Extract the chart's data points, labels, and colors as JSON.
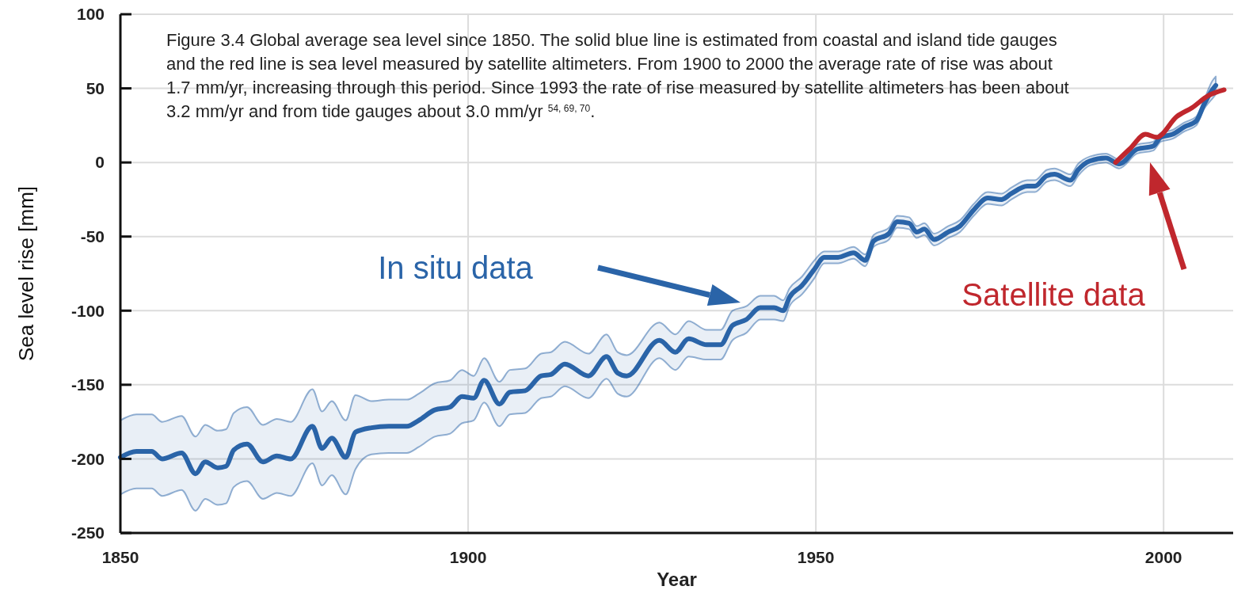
{
  "chart_data": {
    "type": "line",
    "xlabel": "Year",
    "ylabel": "Sea level rise [mm]",
    "xlim": [
      1850,
      2010
    ],
    "xticks": [
      1850,
      1900,
      1950,
      2000
    ],
    "ylim": [
      -250,
      100
    ],
    "yticks": [
      -250,
      -200,
      -150,
      -100,
      -50,
      0,
      50,
      100
    ],
    "grid": true,
    "line_style": "solid",
    "series": [
      {
        "color": "#2a64a8",
        "x": [
          1850,
          1852.3,
          1854.5,
          1856,
          1858.8,
          1860.8,
          1862.2,
          1864,
          1865.2,
          1866.3,
          1868.2,
          1870.5,
          1872.5,
          1874.5,
          1877.6,
          1879,
          1880.4,
          1882.4,
          1883.8,
          1886.1,
          1888.6,
          1891.2,
          1892.9,
          1895.2,
          1897.4,
          1899.1,
          1900.8,
          1902.3,
          1904.5,
          1906,
          1908.2,
          1910.5,
          1911.9,
          1913.9,
          1917.3,
          1919.9,
          1921.5,
          1922.8,
          1927.5,
          1929.8,
          1931.7,
          1934.3,
          1936.3,
          1938,
          1940,
          1942,
          1944,
          1945.3,
          1946.2,
          1948,
          1949.8,
          1951.2,
          1953.2,
          1955.4,
          1957.1,
          1958.3,
          1960.5,
          1961.7,
          1963.4,
          1964.5,
          1965.6,
          1967,
          1969,
          1970.7,
          1972.7,
          1974.7,
          1976.7,
          1978.1,
          1980.4,
          1981.5,
          1983.2,
          1984.3,
          1986.6,
          1987.7,
          1989.4,
          1991.7,
          1993.6,
          1996.2,
          1998.5,
          1999.6,
          2001.3,
          2003,
          2004.7,
          2005.8,
          2007,
          2007.5
        ],
        "values": [
          -199,
          -195,
          -195,
          -200,
          -196,
          -210,
          -202,
          -206,
          -205,
          -194,
          -190,
          -202,
          -198,
          -200,
          -178,
          -193,
          -186,
          -199,
          -182,
          -179,
          -178,
          -178,
          -174,
          -167,
          -165,
          -158,
          -159,
          -147,
          -163,
          -155,
          -154,
          -144,
          -143,
          -136,
          -144,
          -131,
          -142,
          -144,
          -120,
          -128,
          -119,
          -123,
          -123,
          -110,
          -106,
          -98,
          -98,
          -100,
          -91,
          -83,
          -72,
          -64,
          -64,
          -61,
          -66,
          -53,
          -48,
          -40,
          -41,
          -47,
          -45,
          -52,
          -47,
          -43,
          -32,
          -24,
          -25,
          -21,
          -16,
          -16,
          -9,
          -8,
          -12,
          -5,
          1,
          3,
          -1,
          9,
          11,
          17,
          19,
          24,
          28,
          39,
          49,
          52
        ],
        "upper": [
          -174,
          -170,
          -170,
          -175,
          -171,
          -185,
          -177,
          -181,
          -180,
          -169,
          -165,
          -177,
          -173,
          -175,
          -153,
          -168,
          -161,
          -174,
          -157,
          -161,
          -160,
          -160,
          -156,
          -149,
          -147,
          -140,
          -144,
          -132,
          -148,
          -140,
          -139,
          -129,
          -128,
          -121,
          -129,
          -116,
          -128,
          -130,
          -108,
          -116,
          -107,
          -113,
          -113,
          -100,
          -97,
          -90,
          -90,
          -93,
          -85,
          -77,
          -66,
          -60,
          -60,
          -57,
          -62,
          -49,
          -44,
          -36,
          -37,
          -43,
          -41,
          -48,
          -43,
          -39,
          -28,
          -20,
          -21,
          -17,
          -12,
          -12,
          -5,
          -4,
          -8,
          -1,
          4,
          6,
          2,
          12,
          14,
          20,
          22,
          27,
          31,
          42,
          55,
          58
        ],
        "lower": [
          -224,
          -220,
          -220,
          -225,
          -221,
          -235,
          -227,
          -231,
          -230,
          -219,
          -215,
          -227,
          -223,
          -225,
          -203,
          -218,
          -211,
          -224,
          -207,
          -197,
          -196,
          -196,
          -192,
          -185,
          -183,
          -176,
          -174,
          -162,
          -178,
          -170,
          -169,
          -159,
          -158,
          -151,
          -159,
          -146,
          -156,
          -158,
          -132,
          -140,
          -131,
          -133,
          -133,
          -120,
          -115,
          -106,
          -106,
          -107,
          -97,
          -89,
          -78,
          -68,
          -68,
          -65,
          -70,
          -57,
          -52,
          -44,
          -45,
          -51,
          -49,
          -56,
          -51,
          -47,
          -36,
          -28,
          -29,
          -25,
          -20,
          -20,
          -13,
          -12,
          -16,
          -9,
          -2,
          0,
          -4,
          6,
          8,
          14,
          16,
          21,
          25,
          36,
          43,
          46
        ]
      },
      {
        "color": "#c0272d",
        "x": [
          1993.1,
          1995.1,
          1997.4,
          1999,
          2001.9,
          2004.1,
          2006.4,
          2008.7
        ],
        "values": [
          0,
          9,
          19,
          17,
          31,
          37,
          45,
          49
        ]
      }
    ],
    "annotations": [
      "In situ data",
      "Satellite data",
      "Figure 3.4 Global average sea level since 1850. The solid blue line is estimated from coastal and island tide gauges and the red line is sea level measured by satellite altimeters. From 1900 to 2000 the average rate of rise was about 1.7 mm/yr, increasing through this period. Since 1993 the rate of rise measured by satellite altimeters has been about 3.2 mm/yr and from tide gauges about 3.0 mm/yr $^{54, 69, 70}$."
    ]
  }
}
